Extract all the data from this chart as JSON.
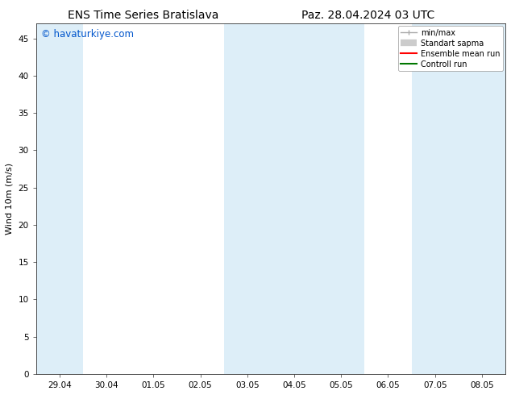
{
  "title_left": "ENS Time Series Bratislava",
  "title_right": "Paz. 28.04.2024 03 UTC",
  "ylabel": "Wind 10m (m/s)",
  "watermark": "© havaturkiye.com",
  "watermark_color": "#0055cc",
  "xlim_left": -0.5,
  "xlim_right": 9.5,
  "ylim_bottom": 0,
  "ylim_top": 47,
  "yticks": [
    0,
    5,
    10,
    15,
    20,
    25,
    30,
    35,
    40,
    45
  ],
  "xtick_labels": [
    "29.04",
    "30.04",
    "01.05",
    "02.05",
    "03.05",
    "04.05",
    "05.05",
    "06.05",
    "07.05",
    "08.05"
  ],
  "xtick_positions": [
    0,
    1,
    2,
    3,
    4,
    5,
    6,
    7,
    8,
    9
  ],
  "background_color": "#ffffff",
  "plot_bg_color": "#ffffff",
  "shaded_bands": [
    {
      "x_start": -0.5,
      "x_end": 0.5,
      "color": "#ddeef8"
    },
    {
      "x_start": 3.5,
      "x_end": 4.5,
      "color": "#ddeef8"
    },
    {
      "x_start": 4.5,
      "x_end": 5.5,
      "color": "#ddeef8"
    },
    {
      "x_start": 5.5,
      "x_end": 6.5,
      "color": "#ddeef8"
    },
    {
      "x_start": 7.5,
      "x_end": 8.5,
      "color": "#ddeef8"
    },
    {
      "x_start": 8.5,
      "x_end": 9.5,
      "color": "#ddeef8"
    }
  ],
  "legend_entries": [
    {
      "label": "min/max",
      "color": "#aaaaaa",
      "lw": 1.0,
      "style": "minmax"
    },
    {
      "label": "Standart sapma",
      "color": "#cccccc",
      "lw": 6,
      "style": "std"
    },
    {
      "label": "Ensemble mean run",
      "color": "#ff0000",
      "lw": 1.5,
      "style": "line"
    },
    {
      "label": "Controll run",
      "color": "#007700",
      "lw": 1.5,
      "style": "line"
    }
  ],
  "title_fontsize": 10,
  "axis_fontsize": 8,
  "tick_fontsize": 7.5,
  "watermark_fontsize": 8.5,
  "legend_fontsize": 7
}
